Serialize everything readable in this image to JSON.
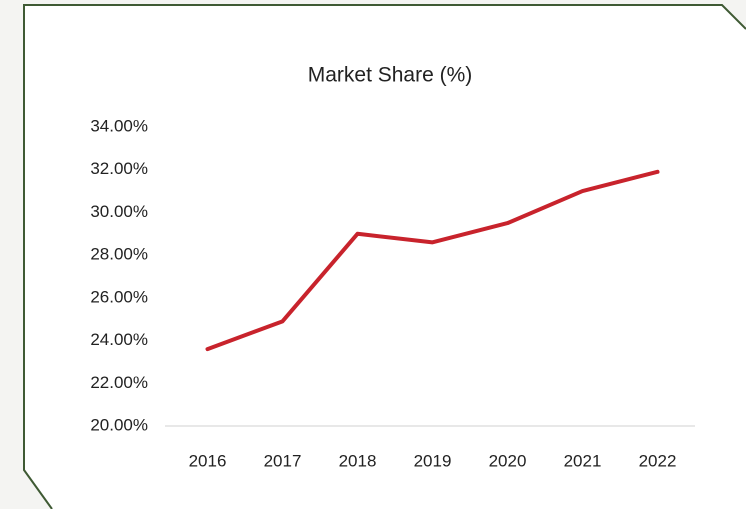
{
  "chart_data": {
    "type": "line",
    "title": "Market Share (%)",
    "categories": [
      "2016",
      "2017",
      "2018",
      "2019",
      "2020",
      "2021",
      "2022"
    ],
    "values": [
      23.6,
      24.9,
      29.0,
      28.6,
      29.5,
      31.0,
      31.9
    ],
    "color": "#c8232c",
    "ylim": [
      20,
      34
    ],
    "yticks": [
      {
        "value": 20,
        "label": "20.00%"
      },
      {
        "value": 22,
        "label": "22.00%"
      },
      {
        "value": 24,
        "label": "24.00%"
      },
      {
        "value": 26,
        "label": "26.00%"
      },
      {
        "value": 28,
        "label": "28.00%"
      },
      {
        "value": 30,
        "label": "30.00%"
      },
      {
        "value": 32,
        "label": "32.00%"
      },
      {
        "value": 34,
        "label": "34.00%"
      }
    ],
    "grid": false
  }
}
